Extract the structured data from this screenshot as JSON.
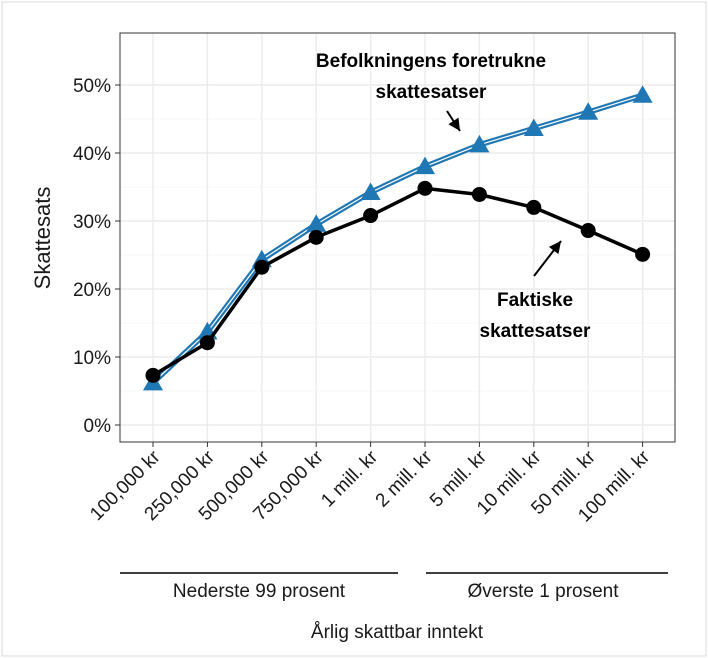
{
  "chart_data": {
    "type": "line",
    "ylabel": "Skattesats",
    "xlabel": "Årlig skattbar inntekt",
    "categories": [
      "100,000 kr",
      "250,000 kr",
      "500,000 kr",
      "750,000 kr",
      "1 mill. kr",
      "2 mill. kr",
      "5 mill. kr",
      "10 mill. kr",
      "50 mill. kr",
      "100 mill. kr"
    ],
    "yticks": [
      "0%",
      "10%",
      "20%",
      "30%",
      "40%",
      "50%"
    ],
    "ylim": [
      0,
      0.555
    ],
    "grid": true,
    "groups": [
      {
        "label": "Nederste 99 prosent"
      },
      {
        "label": "Øverste 1 prosent"
      }
    ],
    "series": [
      {
        "name": "Befolkningens foretrukne skattesatser",
        "color": "#1f77b4",
        "marker": "triangle",
        "values": [
          0.062,
          0.137,
          0.243,
          0.295,
          0.342,
          0.38,
          0.412,
          0.436,
          0.46,
          0.485
        ]
      },
      {
        "name": "Faktiske skattesatser",
        "color": "#000000",
        "marker": "circle",
        "values": [
          0.073,
          0.121,
          0.232,
          0.276,
          0.308,
          0.348,
          0.339,
          0.32,
          0.286,
          0.251
        ]
      }
    ],
    "annotations": [
      {
        "lines": [
          "Befolkningens foretrukne",
          "skattesatser"
        ]
      },
      {
        "lines": [
          "Faktiske",
          "skattesatser"
        ]
      }
    ]
  }
}
